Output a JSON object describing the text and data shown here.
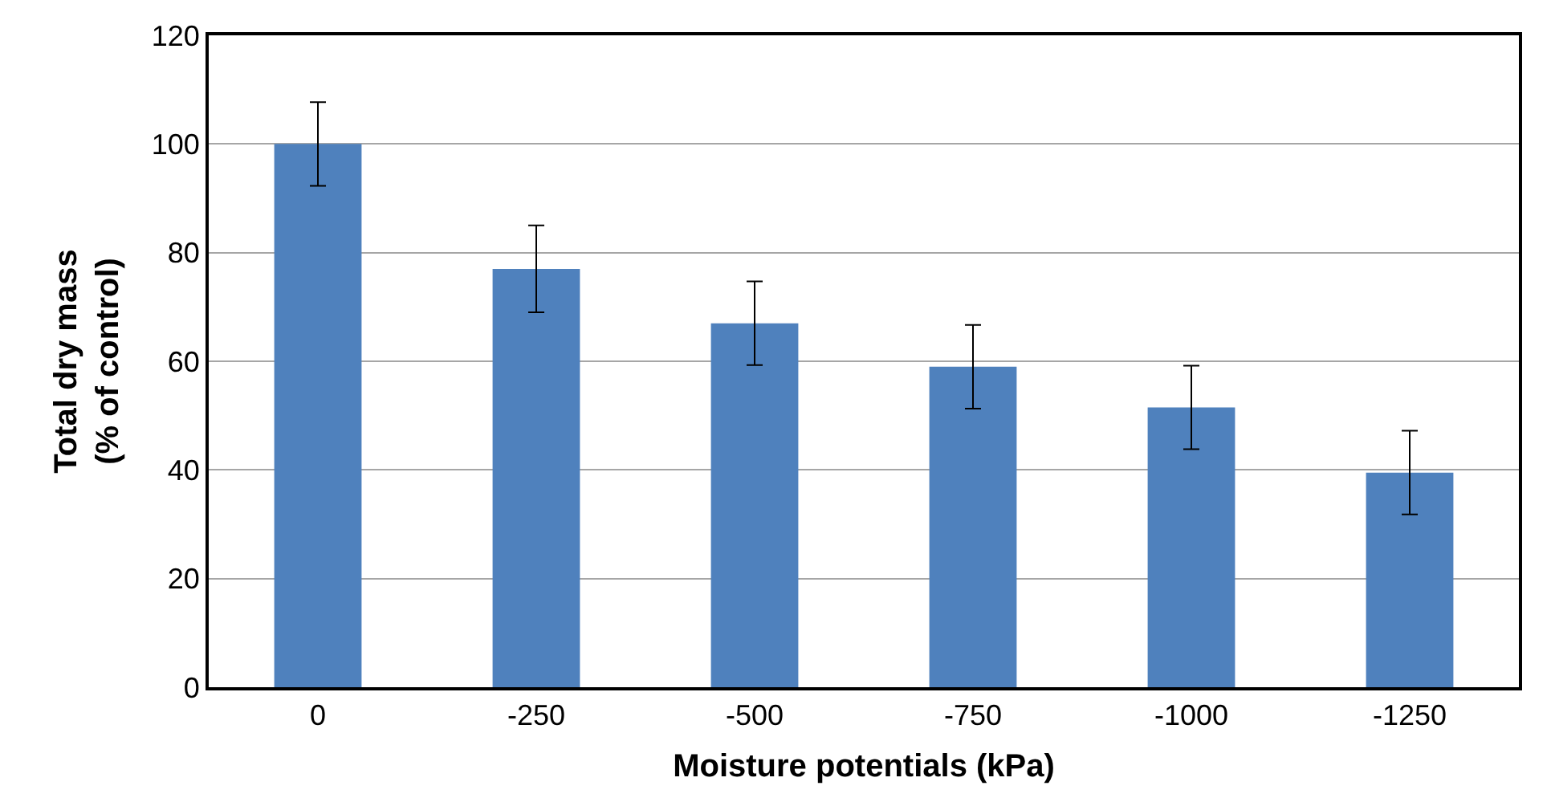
{
  "chart_data": {
    "type": "bar",
    "xlabel": "Moisture potentials (kPa)",
    "ylabel": "Total dry mass\n(% of control)",
    "categories": [
      "0",
      "-250",
      "-500",
      "-750",
      "-1000",
      "-1250"
    ],
    "values": [
      100,
      77,
      67,
      59,
      51.5,
      39.5
    ],
    "errors": [
      7.7,
      8,
      7.7,
      7.7,
      7.7,
      7.7
    ],
    "color": "#4f81bd",
    "ylim": [
      0,
      120
    ],
    "yticks": [
      0,
      20,
      40,
      60,
      80,
      100,
      120
    ],
    "grid": "y"
  }
}
